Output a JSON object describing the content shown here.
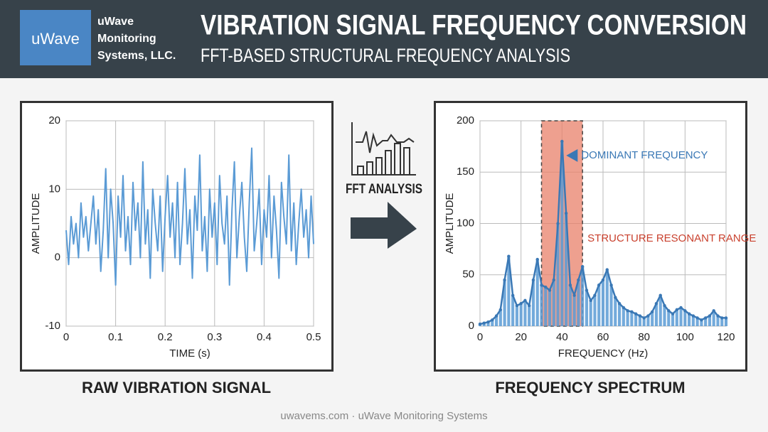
{
  "header": {
    "logo": "uWave",
    "company": [
      "uWave",
      "Monitoring",
      "Systems, LLC."
    ],
    "title": "VIBRATION SIGNAL FREQUENCY CONVERSION",
    "subtitle": "FFT-BASED STRUCTURAL FREQUENCY ANALYSIS"
  },
  "middle_label": "FFT ANALYSIS",
  "footer": "uwavems.com · uWave Monitoring Systems",
  "chart_data": [
    {
      "type": "line",
      "caption": "RAW VIBRATION SIGNAL",
      "x_label": "TIME (s)",
      "y_label": "AMPLITUDE",
      "color": "#5b9bd5",
      "grid": true,
      "xlim": [
        0,
        0.5
      ],
      "ylim": [
        -10,
        20
      ],
      "xticks": [
        0,
        0.1,
        0.2,
        0.3,
        0.4,
        0.5
      ],
      "yticks": [
        -10,
        0,
        10,
        20
      ],
      "x": [
        0,
        0.005,
        0.01,
        0.015,
        0.02,
        0.025,
        0.03,
        0.035,
        0.04,
        0.045,
        0.05,
        0.055,
        0.06,
        0.065,
        0.07,
        0.075,
        0.08,
        0.085,
        0.09,
        0.095,
        0.1,
        0.105,
        0.11,
        0.115,
        0.12,
        0.125,
        0.13,
        0.135,
        0.14,
        0.145,
        0.15,
        0.155,
        0.16,
        0.165,
        0.17,
        0.175,
        0.18,
        0.185,
        0.19,
        0.195,
        0.2,
        0.205,
        0.21,
        0.215,
        0.22,
        0.225,
        0.23,
        0.235,
        0.24,
        0.245,
        0.25,
        0.255,
        0.26,
        0.265,
        0.27,
        0.275,
        0.28,
        0.285,
        0.29,
        0.295,
        0.3,
        0.305,
        0.31,
        0.315,
        0.32,
        0.325,
        0.33,
        0.335,
        0.34,
        0.345,
        0.35,
        0.355,
        0.36,
        0.365,
        0.37,
        0.375,
        0.38,
        0.385,
        0.39,
        0.395,
        0.4,
        0.405,
        0.41,
        0.415,
        0.42,
        0.425,
        0.43,
        0.435,
        0.44,
        0.445,
        0.45,
        0.455,
        0.46,
        0.465,
        0.47,
        0.475,
        0.48,
        0.485,
        0.49,
        0.495,
        0.5
      ],
      "values": [
        4,
        -1,
        6,
        2,
        5,
        0,
        8,
        3,
        6,
        1,
        5,
        9,
        2,
        7,
        -2,
        4,
        13,
        0,
        10,
        5,
        -4,
        9,
        3,
        12,
        1,
        6,
        -1,
        11,
        4,
        8,
        0,
        14,
        2,
        7,
        -3,
        10,
        5,
        1,
        9,
        -2,
        6,
        12,
        3,
        8,
        0,
        11,
        -1,
        5,
        13,
        2,
        7,
        -3,
        9,
        4,
        15,
        1,
        6,
        -2,
        10,
        3,
        8,
        -1,
        12,
        5,
        2,
        9,
        -4,
        7,
        14,
        0,
        6,
        11,
        3,
        -2,
        8,
        16,
        1,
        5,
        10,
        -1,
        7,
        3,
        12,
        0,
        9,
        4,
        -3,
        11,
        6,
        2,
        15,
        1,
        8,
        -1,
        5,
        10,
        3,
        7,
        0,
        9,
        2
      ]
    },
    {
      "type": "bar",
      "caption": "FREQUENCY SPECTRUM",
      "x_label": "FREQUENCY (Hz)",
      "y_label": "AMPLITUDE",
      "color": "#5b9bd5",
      "line_color": "#3a78b5",
      "line_overlay": true,
      "grid": true,
      "xlim": [
        0,
        120
      ],
      "ylim": [
        0,
        200
      ],
      "xticks": [
        0,
        20,
        40,
        60,
        80,
        100,
        120
      ],
      "yticks": [
        0,
        50,
        100,
        150,
        200
      ],
      "highlight": {
        "range": [
          30,
          50
        ],
        "label": "STRUCTURE RESONANT RANGE",
        "color": "#e8806a"
      },
      "annotation": {
        "text": "DOMINANT FREQUENCY",
        "x": 40,
        "y": 180
      },
      "x": [
        0,
        2,
        4,
        6,
        8,
        10,
        12,
        14,
        16,
        18,
        20,
        22,
        24,
        26,
        28,
        30,
        32,
        34,
        36,
        38,
        40,
        42,
        44,
        46,
        48,
        50,
        52,
        54,
        56,
        58,
        60,
        62,
        64,
        66,
        68,
        70,
        72,
        74,
        76,
        78,
        80,
        82,
        84,
        86,
        88,
        90,
        92,
        94,
        96,
        98,
        100,
        102,
        104,
        106,
        108,
        110,
        112,
        114,
        116,
        118,
        120
      ],
      "values": [
        2,
        3,
        4,
        6,
        10,
        16,
        45,
        68,
        30,
        20,
        22,
        25,
        20,
        45,
        65,
        40,
        38,
        35,
        45,
        100,
        180,
        110,
        40,
        30,
        45,
        58,
        35,
        25,
        30,
        40,
        45,
        55,
        40,
        28,
        22,
        18,
        15,
        14,
        12,
        10,
        8,
        10,
        14,
        22,
        30,
        20,
        15,
        12,
        16,
        18,
        15,
        12,
        10,
        8,
        6,
        8,
        10,
        15,
        10,
        8,
        8
      ]
    }
  ]
}
